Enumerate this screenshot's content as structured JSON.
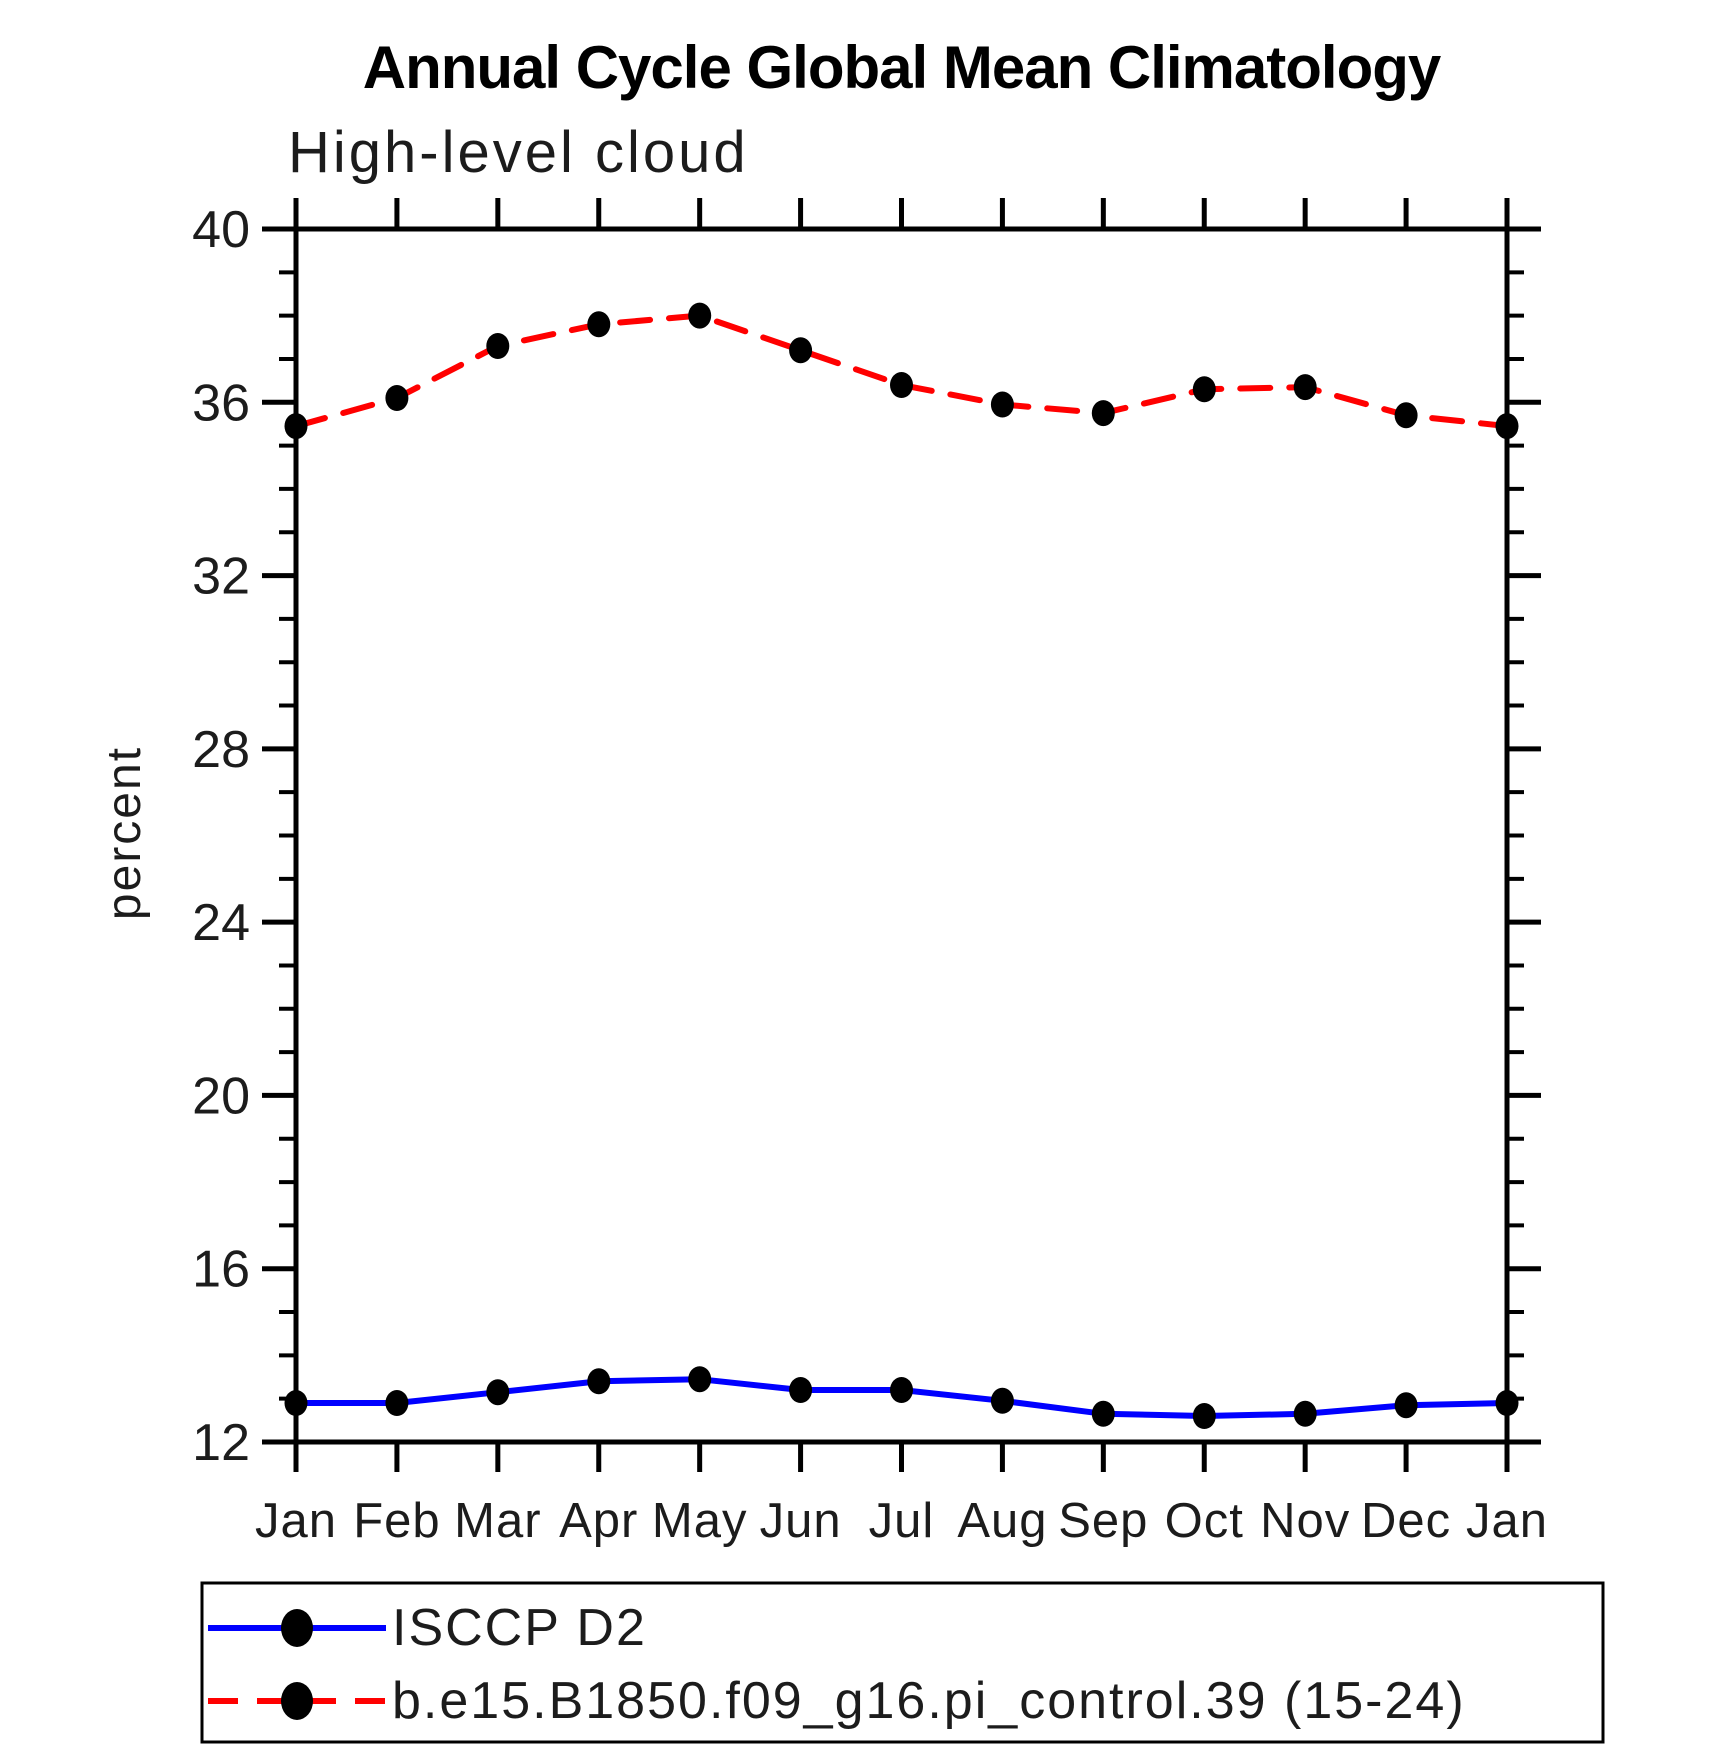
{
  "chart_data": {
    "type": "line",
    "title": "Annual Cycle Global Mean Climatology",
    "subtitle": "High-level cloud",
    "ylabel": "percent",
    "xlabel": "",
    "ylim": [
      12,
      40
    ],
    "y_major_tick_step": 4,
    "y_minor_tick_step": 1,
    "y_major_tick_labels": [
      "12",
      "16",
      "20",
      "24",
      "28",
      "32",
      "36",
      "40"
    ],
    "grid": false,
    "legend_position": "bottom-left-box",
    "categories": [
      "Jan",
      "Feb",
      "Mar",
      "Apr",
      "May",
      "Jun",
      "Jul",
      "Aug",
      "Sep",
      "Oct",
      "Nov",
      "Dec",
      "Jan"
    ],
    "series": [
      {
        "name": "ISCCP D2",
        "color": "#0000ff",
        "line_style": "solid",
        "marker": "filled-circle",
        "marker_color": "#000000",
        "values": [
          12.9,
          12.9,
          13.15,
          13.4,
          13.45,
          13.2,
          13.2,
          12.95,
          12.65,
          12.6,
          12.65,
          12.85,
          12.9
        ]
      },
      {
        "name": "b.e15.B1850.f09_g16.pi_control.39 (15-24)",
        "color": "#ff0000",
        "line_style": "dashed",
        "marker": "filled-circle",
        "marker_color": "#000000",
        "values": [
          35.45,
          36.1,
          37.3,
          37.8,
          38.0,
          37.2,
          36.4,
          35.95,
          35.75,
          36.3,
          36.35,
          35.7,
          35.45
        ]
      }
    ]
  },
  "colors": {
    "axis": "#000000",
    "text": "#000000",
    "background": "#ffffff",
    "series_blue": "#0000ff",
    "series_red": "#ff0000",
    "marker": "#000000"
  }
}
